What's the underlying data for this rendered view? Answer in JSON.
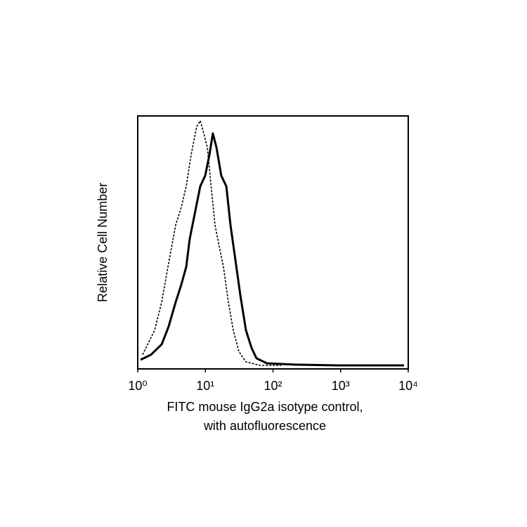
{
  "chart_data": {
    "type": "line",
    "xlabel": [
      "FITC mouse IgG2a isotype control,",
      "with autofluorescence"
    ],
    "ylabel": "Relative Cell Number",
    "xscale": "log",
    "xlim": [
      1,
      10000
    ],
    "ylim": [
      0,
      100
    ],
    "xticks": [
      {
        "value": 1,
        "label": "10⁰"
      },
      {
        "value": 10,
        "label": "10¹"
      },
      {
        "value": 100,
        "label": "10²"
      },
      {
        "value": 1000,
        "label": "10³"
      },
      {
        "value": 10000,
        "label": "10⁴"
      }
    ],
    "series": [
      {
        "color": "#000000",
        "line_style": "dashed",
        "line_width": 1.6,
        "x": [
          1.18,
          1.4,
          1.78,
          2.26,
          2.86,
          3.64,
          4.41,
          5.21,
          6.16,
          7.46,
          8.41,
          9.48,
          10.7,
          12.0,
          13.9,
          16.0,
          18.5,
          21.9,
          25.9,
          31.3,
          39.8,
          64.3,
          132
        ],
        "values": [
          5.6,
          9.7,
          15.3,
          26.4,
          41.7,
          56.9,
          63.9,
          72.2,
          84.7,
          95.8,
          98.1,
          93.1,
          87.5,
          73.6,
          56.9,
          48.6,
          40.3,
          26.4,
          15.3,
          6.9,
          2.8,
          1.4,
          1.4
        ]
      },
      {
        "color": "#000000",
        "line_style": "solid",
        "line_width": 3,
        "x": [
          1.1,
          1.57,
          2.26,
          2.86,
          3.64,
          4.41,
          5.21,
          5.87,
          7.11,
          8.41,
          9.94,
          11.5,
          12.9,
          14.6,
          17.2,
          20.4,
          23.5,
          27.8,
          32.9,
          39.8,
          48.2,
          57.0,
          81.6,
          212,
          893,
          8670
        ],
        "values": [
          3.6,
          5.6,
          9.7,
          16.7,
          26.4,
          33.3,
          40.3,
          51.4,
          62.5,
          72.2,
          76.4,
          84.7,
          93.1,
          87.5,
          76.4,
          72.2,
          56.9,
          43.1,
          29.2,
          15.3,
          8.3,
          4.2,
          2.2,
          1.7,
          1.4,
          1.4
        ]
      }
    ]
  }
}
